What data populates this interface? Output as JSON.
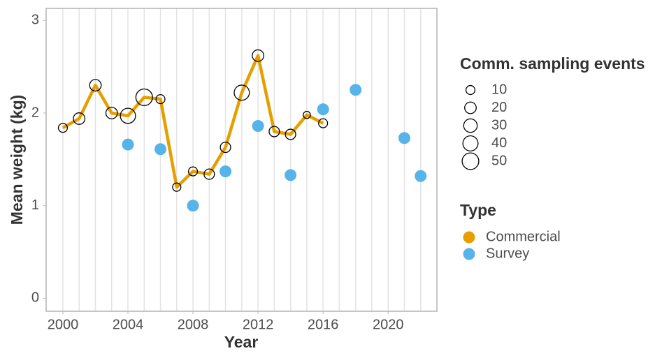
{
  "chart_data": {
    "type": "scatter",
    "x_label": "Year",
    "y_label": "Mean weight (kg)",
    "xlim": [
      1998.97,
      2023.0
    ],
    "ylim": [
      -0.14,
      3.13
    ],
    "xticks": [
      2000,
      2004,
      2008,
      2012,
      2016,
      2020
    ],
    "xgrid": [
      2000,
      2001,
      2002,
      2003,
      2004,
      2005,
      2006,
      2007,
      2008,
      2009,
      2010,
      2011,
      2012,
      2013,
      2014,
      2015,
      2016,
      2017,
      2018,
      2019,
      2020,
      2021,
      2022
    ],
    "yticks": [
      0,
      1,
      2,
      3
    ],
    "legend_title": "Type",
    "series": [
      {
        "name": "Commercial",
        "color": "#e69f00",
        "line": true,
        "x": [
          2000,
          2001,
          2002,
          2003,
          2004,
          2005,
          2006,
          2007,
          2008,
          2009,
          2010,
          2011,
          2012,
          2013,
          2014,
          2015,
          2016
        ],
        "values": [
          1.84,
          1.94,
          2.3,
          2.0,
          1.97,
          2.17,
          2.15,
          1.2,
          1.37,
          1.34,
          1.63,
          2.22,
          2.62,
          1.8,
          1.77,
          1.98,
          1.89
        ],
        "sizes": [
          10,
          20,
          20,
          20,
          40,
          50,
          10,
          8,
          10,
          15,
          15,
          40,
          20,
          15,
          15,
          5,
          10
        ]
      },
      {
        "name": "Survey",
        "color": "#56b4e9",
        "line": false,
        "x": [
          2004,
          2006,
          2008,
          2010,
          2012,
          2014,
          2016,
          2018,
          2021,
          2022
        ],
        "values": [
          1.66,
          1.61,
          1.0,
          1.37,
          1.86,
          1.33,
          2.04,
          2.25,
          1.73,
          1.32
        ]
      }
    ],
    "size_legend": {
      "title": "Comm. sampling events",
      "values": [
        10,
        20,
        30,
        40,
        50
      ]
    }
  }
}
